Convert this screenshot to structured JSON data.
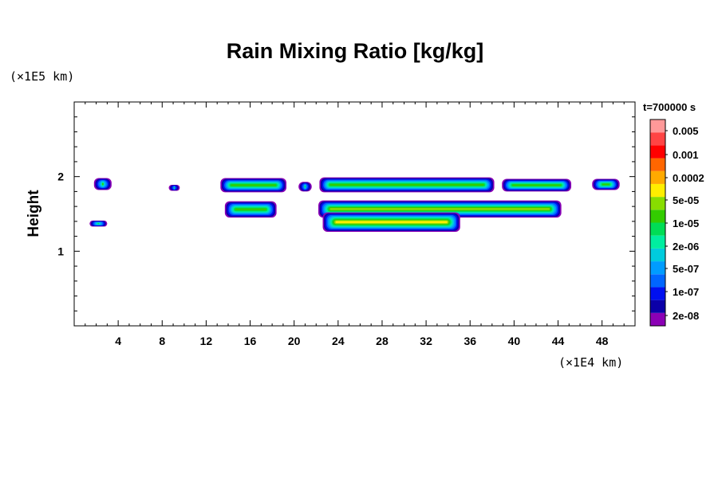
{
  "chart_data": {
    "type": "heatmap",
    "title": "Rain Mixing Ratio [kg/kg]",
    "ylabel": "Height",
    "xlabel": "",
    "x_unit_label": "(×1E4 km)",
    "y_unit_label": "(×1E5 km)",
    "time_label": "t=700000 s",
    "xlim": [
      0,
      51
    ],
    "ylim": [
      0,
      3
    ],
    "x_ticks": [
      4,
      8,
      12,
      16,
      20,
      24,
      28,
      32,
      36,
      40,
      44,
      48
    ],
    "y_ticks": [
      1,
      2
    ],
    "colorbar": {
      "labels": [
        "0.005",
        "0.001",
        "0.0002",
        "5e-05",
        "1e-05",
        "2e-06",
        "5e-07",
        "1e-07",
        "2e-08"
      ],
      "colors": [
        "#8b00b5",
        "#0b00a8",
        "#0010f0",
        "#0066ff",
        "#009cff",
        "#00ccdd",
        "#00eea0",
        "#00dd55",
        "#33cc00",
        "#88dd00",
        "#ffee00",
        "#ffaa00",
        "#ff6600",
        "#ff0000",
        "#ff4444",
        "#ff9999"
      ]
    },
    "regions": [
      {
        "x0": 1.8,
        "x1": 3.4,
        "y0": 1.82,
        "y1": 1.98,
        "peak": 8
      },
      {
        "x0": 1.4,
        "x1": 3.0,
        "y0": 1.33,
        "y1": 1.41,
        "peak": 7
      },
      {
        "x0": 8.6,
        "x1": 9.6,
        "y0": 1.81,
        "y1": 1.89,
        "peak": 7
      },
      {
        "x0": 13.3,
        "x1": 19.3,
        "y0": 1.79,
        "y1": 1.98,
        "peak": 8
      },
      {
        "x0": 13.7,
        "x1": 18.4,
        "y0": 1.45,
        "y1": 1.67,
        "peak": 8
      },
      {
        "x0": 20.4,
        "x1": 21.6,
        "y0": 1.8,
        "y1": 1.93,
        "peak": 7
      },
      {
        "x0": 22.3,
        "x1": 38.2,
        "y0": 1.79,
        "y1": 1.99,
        "peak": 8
      },
      {
        "x0": 22.2,
        "x1": 44.3,
        "y0": 1.45,
        "y1": 1.68,
        "peak": 9
      },
      {
        "x0": 22.6,
        "x1": 35.1,
        "y0": 1.26,
        "y1": 1.52,
        "peak": 10
      },
      {
        "x0": 38.9,
        "x1": 45.2,
        "y0": 1.8,
        "y1": 1.97,
        "peak": 8
      },
      {
        "x0": 47.1,
        "x1": 49.6,
        "y0": 1.82,
        "y1": 1.97,
        "peak": 8
      }
    ]
  }
}
